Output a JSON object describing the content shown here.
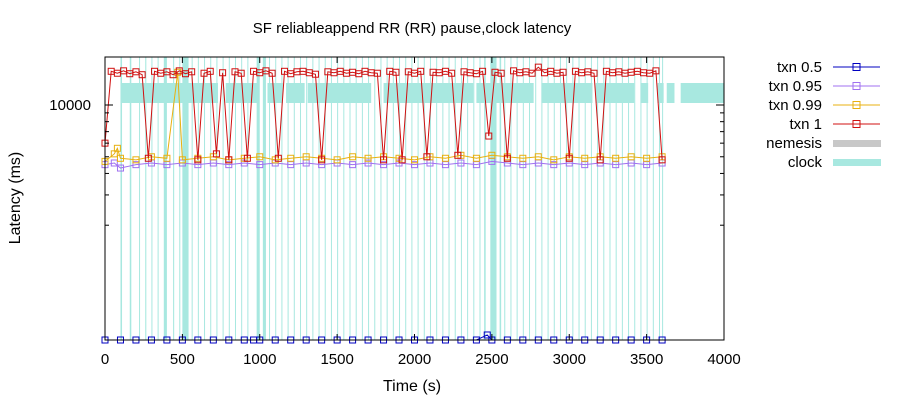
{
  "chart_data": {
    "type": "line",
    "title": "SF reliableappend RR (RR) pause,clock latency",
    "xlabel": "Time (s)",
    "ylabel": "Latency (ms)",
    "xlim": [
      0,
      4000
    ],
    "x_ticks": [
      "0",
      "500",
      "1000",
      "1500",
      "2000",
      "2500",
      "3000",
      "3500",
      "4000"
    ],
    "y_scale": "log",
    "y_ticks": [
      "10000"
    ],
    "legend_position": "outside-right",
    "grid": false,
    "colors": {
      "txn_0_5": "#0000c0",
      "txn_0_95": "#a070f0",
      "txn_0_99": "#e8b010",
      "txn_1": "#d01010",
      "nemesis": "#c8c8c8",
      "clock": "#a8e8e0"
    },
    "series": [
      {
        "name": "txn 0.5",
        "x": [
          0,
          100,
          200,
          300,
          400,
          500,
          600,
          700,
          800,
          900,
          960,
          1000,
          1100,
          1200,
          1300,
          1400,
          1500,
          1600,
          1700,
          1800,
          1900,
          2000,
          2100,
          2200,
          2300,
          2400,
          2470,
          2500,
          2600,
          2700,
          2800,
          2900,
          3000,
          3100,
          3200,
          3300,
          3400,
          3500,
          3600
        ],
        "y": [
          340,
          340,
          340,
          340,
          340,
          340,
          340,
          340,
          340,
          340,
          370,
          340,
          340,
          340,
          340,
          340,
          340,
          340,
          340,
          340,
          340,
          340,
          340,
          340,
          340,
          340,
          460,
          340,
          340,
          340,
          340,
          340,
          340,
          340,
          340,
          340,
          340,
          340,
          340
        ]
      },
      {
        "name": "txn 0.95",
        "x": [
          0,
          60,
          100,
          200,
          300,
          400,
          500,
          600,
          700,
          800,
          900,
          1000,
          1100,
          1200,
          1300,
          1400,
          1500,
          1600,
          1700,
          1800,
          1900,
          2000,
          2100,
          2200,
          2300,
          2400,
          2500,
          2600,
          2700,
          2800,
          2900,
          3000,
          3100,
          3200,
          3300,
          3400,
          3500,
          3600
        ],
        "y": [
          4500,
          4600,
          4300,
          4500,
          4600,
          4500,
          4600,
          4500,
          4600,
          4500,
          4600,
          4500,
          4600,
          4500,
          4600,
          4500,
          4600,
          4500,
          4600,
          4500,
          4600,
          4500,
          4600,
          4500,
          4600,
          4500,
          4700,
          4600,
          4500,
          4600,
          4500,
          4600,
          4500,
          4600,
          4500,
          4600,
          4500,
          4600
        ]
      },
      {
        "name": "txn 0.99",
        "x": [
          0,
          60,
          80,
          100,
          200,
          300,
          400,
          470,
          500,
          600,
          700,
          800,
          900,
          1000,
          1100,
          1200,
          1300,
          1400,
          1500,
          1600,
          1700,
          1800,
          1900,
          2000,
          2100,
          2200,
          2300,
          2400,
          2500,
          2600,
          2700,
          2800,
          2900,
          3000,
          3100,
          3200,
          3300,
          3400,
          3500,
          3600
        ],
        "y": [
          4700,
          5200,
          5600,
          4900,
          4800,
          5000,
          4900,
          15500,
          4800,
          4900,
          5000,
          4800,
          4900,
          5000,
          4800,
          4900,
          5000,
          4900,
          4800,
          5000,
          4900,
          5000,
          4900,
          4800,
          5000,
          4900,
          5100,
          4900,
          5100,
          5000,
          4900,
          5000,
          4800,
          5000,
          4900,
          5000,
          4900,
          5000,
          4900,
          5000
        ]
      },
      {
        "name": "txn 1",
        "x": [
          0,
          40,
          80,
          120,
          160,
          200,
          240,
          280,
          320,
          360,
          400,
          440,
          480,
          520,
          560,
          600,
          640,
          680,
          720,
          760,
          800,
          840,
          880,
          920,
          960,
          1000,
          1040,
          1080,
          1120,
          1160,
          1200,
          1240,
          1280,
          1320,
          1360,
          1400,
          1440,
          1480,
          1520,
          1560,
          1600,
          1640,
          1680,
          1720,
          1760,
          1800,
          1840,
          1880,
          1920,
          1960,
          2000,
          2040,
          2080,
          2120,
          2160,
          2200,
          2240,
          2280,
          2320,
          2360,
          2400,
          2440,
          2480,
          2520,
          2560,
          2600,
          2640,
          2680,
          2720,
          2760,
          2800,
          2840,
          2880,
          2920,
          2960,
          3000,
          3040,
          3080,
          3120,
          3160,
          3200,
          3240,
          3280,
          3320,
          3360,
          3400,
          3440,
          3480,
          3520,
          3560,
          3600
        ],
        "y": [
          6000,
          15700,
          15300,
          15800,
          15200,
          15600,
          15000,
          4900,
          15700,
          15300,
          15600,
          15000,
          15800,
          15200,
          15600,
          4800,
          15300,
          15700,
          5200,
          15400,
          4800,
          15600,
          15300,
          4900,
          15700,
          15400,
          15800,
          15300,
          4900,
          15700,
          15200,
          15600,
          15700,
          15400,
          15100,
          4800,
          15600,
          15400,
          15700,
          15300,
          15500,
          15200,
          15700,
          15400,
          15300,
          4800,
          15700,
          15500,
          4800,
          15600,
          15300,
          15700,
          5000,
          15500,
          15400,
          15700,
          15300,
          5100,
          15600,
          15400,
          15200,
          15700,
          6600,
          15500,
          15300,
          4900,
          15800,
          15400,
          15600,
          15300,
          16600,
          15400,
          15700,
          15300,
          15500,
          4900,
          15700,
          15400,
          15600,
          15300,
          4800,
          15700,
          15400,
          15600,
          15300,
          15500,
          15700,
          15400,
          15300,
          15800,
          4800
        ]
      }
    ],
    "clock_intervals": [
      [
        100,
        110
      ],
      [
        160,
        170
      ],
      [
        220,
        226
      ],
      [
        260,
        267
      ],
      [
        300,
        306
      ],
      [
        340,
        346
      ],
      [
        380,
        400
      ],
      [
        440,
        447
      ],
      [
        480,
        486
      ],
      [
        500,
        540
      ],
      [
        560,
        566
      ],
      [
        600,
        606
      ],
      [
        640,
        646
      ],
      [
        680,
        686
      ],
      [
        720,
        726
      ],
      [
        760,
        766
      ],
      [
        800,
        806
      ],
      [
        840,
        846
      ],
      [
        880,
        886
      ],
      [
        920,
        926
      ],
      [
        980,
        1000
      ],
      [
        1020,
        1040
      ],
      [
        1060,
        1066
      ],
      [
        1100,
        1106
      ],
      [
        1140,
        1146
      ],
      [
        1180,
        1186
      ],
      [
        1220,
        1226
      ],
      [
        1260,
        1266
      ],
      [
        1300,
        1306
      ],
      [
        1340,
        1346
      ],
      [
        1380,
        1386
      ],
      [
        1420,
        1426
      ],
      [
        1460,
        1466
      ],
      [
        1500,
        1506
      ],
      [
        1540,
        1546
      ],
      [
        1580,
        1586
      ],
      [
        1620,
        1626
      ],
      [
        1660,
        1666
      ],
      [
        1700,
        1706
      ],
      [
        1740,
        1746
      ],
      [
        1780,
        1786
      ],
      [
        1820,
        1826
      ],
      [
        1860,
        1866
      ],
      [
        1900,
        1906
      ],
      [
        1940,
        1946
      ],
      [
        1980,
        1986
      ],
      [
        2020,
        2026
      ],
      [
        2060,
        2066
      ],
      [
        2100,
        2106
      ],
      [
        2140,
        2146
      ],
      [
        2180,
        2186
      ],
      [
        2220,
        2226
      ],
      [
        2260,
        2266
      ],
      [
        2300,
        2306
      ],
      [
        2340,
        2346
      ],
      [
        2380,
        2386
      ],
      [
        2420,
        2426
      ],
      [
        2450,
        2460
      ],
      [
        2490,
        2530
      ],
      [
        2550,
        2560
      ],
      [
        2580,
        2586
      ],
      [
        2620,
        2626
      ],
      [
        2660,
        2666
      ],
      [
        2700,
        2706
      ],
      [
        2740,
        2746
      ],
      [
        2780,
        2786
      ],
      [
        2820,
        2826
      ],
      [
        2860,
        2866
      ],
      [
        2900,
        2906
      ],
      [
        2940,
        2946
      ],
      [
        2980,
        2986
      ],
      [
        3020,
        3026
      ],
      [
        3060,
        3066
      ],
      [
        3100,
        3106
      ],
      [
        3140,
        3146
      ],
      [
        3180,
        3186
      ],
      [
        3220,
        3226
      ],
      [
        3260,
        3266
      ],
      [
        3300,
        3306
      ],
      [
        3340,
        3346
      ],
      [
        3380,
        3386
      ],
      [
        3420,
        3426
      ],
      [
        3460,
        3466
      ],
      [
        3500,
        3506
      ],
      [
        3540,
        3546
      ],
      [
        3580,
        3586
      ],
      [
        3600,
        3606
      ]
    ],
    "clock_upper_band": [
      [
        100,
        730
      ],
      [
        780,
        990
      ],
      [
        1050,
        1150
      ],
      [
        1170,
        1290
      ],
      [
        1310,
        1720
      ],
      [
        1800,
        2380
      ],
      [
        2400,
        2770
      ],
      [
        2820,
        3150
      ],
      [
        3170,
        3420
      ],
      [
        3460,
        3510
      ],
      [
        3570,
        3610
      ],
      [
        3630,
        3680
      ],
      [
        3720,
        4000
      ]
    ]
  },
  "legend": {
    "txn_0_5": "txn 0.5",
    "txn_0_95": "txn 0.95",
    "txn_0_99": "txn 0.99",
    "txn_1": "txn 1",
    "nemesis": "nemesis",
    "clock": "clock"
  }
}
